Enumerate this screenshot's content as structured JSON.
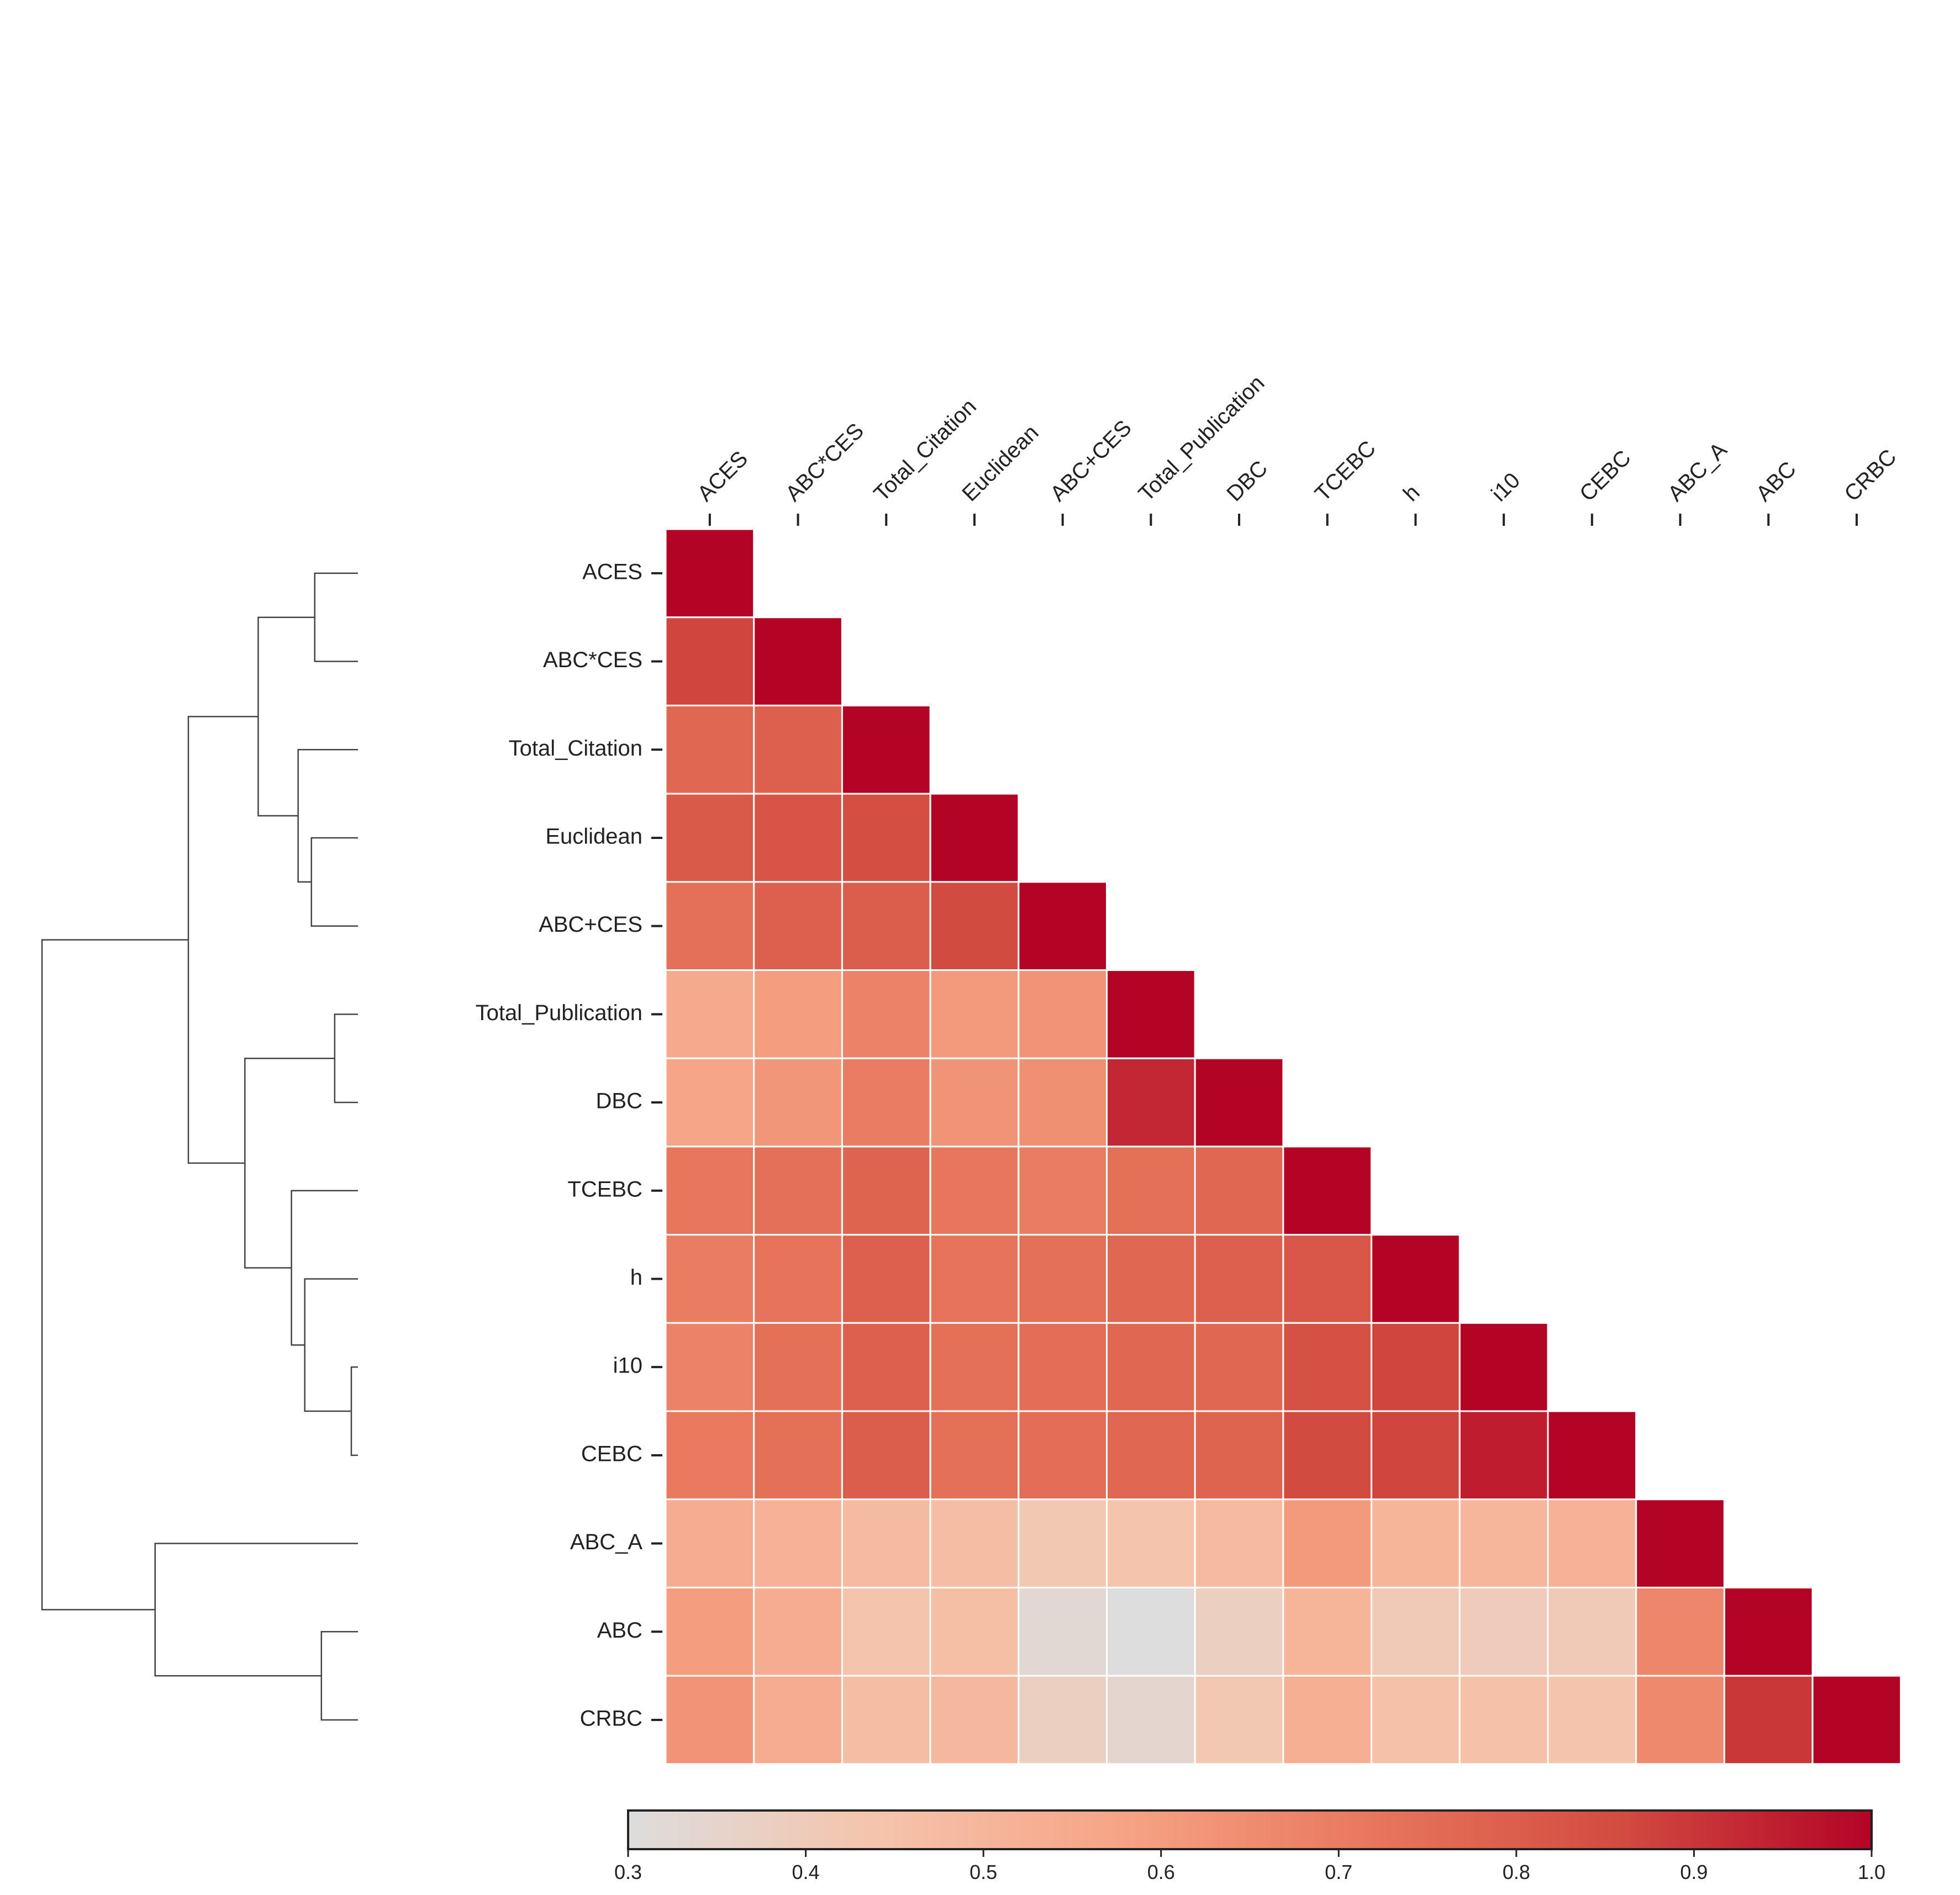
{
  "chart_data": {
    "type": "heatmap",
    "subtype": "lower-triangular correlation matrix with row dendrogram",
    "labels": [
      "ACES",
      "ABC*CES",
      "Total_Citation",
      "Euclidean",
      "ABC+CES",
      "Total_Publication",
      "DBC",
      "TCEBC",
      "h",
      "i10",
      "CEBC",
      "ABC_A",
      "ABC",
      "CRBC"
    ],
    "matrix": [
      [
        1.0
      ],
      [
        0.87,
        1.0
      ],
      [
        0.77,
        0.79,
        1.0
      ],
      [
        0.81,
        0.83,
        0.85,
        1.0
      ],
      [
        0.74,
        0.79,
        0.8,
        0.86,
        1.0
      ],
      [
        0.55,
        0.6,
        0.68,
        0.61,
        0.63,
        1.0
      ],
      [
        0.57,
        0.62,
        0.7,
        0.63,
        0.64,
        0.93,
        1.0
      ],
      [
        0.72,
        0.74,
        0.78,
        0.72,
        0.7,
        0.74,
        0.77,
        1.0
      ],
      [
        0.7,
        0.73,
        0.79,
        0.73,
        0.74,
        0.77,
        0.79,
        0.82,
        1.0
      ],
      [
        0.68,
        0.74,
        0.79,
        0.74,
        0.75,
        0.77,
        0.77,
        0.84,
        0.87,
        1.0
      ],
      [
        0.71,
        0.74,
        0.8,
        0.74,
        0.75,
        0.77,
        0.78,
        0.86,
        0.87,
        0.95,
        1.0
      ],
      [
        0.54,
        0.52,
        0.48,
        0.47,
        0.42,
        0.44,
        0.48,
        0.61,
        0.51,
        0.5,
        0.52,
        1.0
      ],
      [
        0.6,
        0.54,
        0.44,
        0.46,
        0.33,
        0.3,
        0.38,
        0.51,
        0.41,
        0.4,
        0.41,
        0.67,
        1.0
      ],
      [
        0.63,
        0.54,
        0.47,
        0.49,
        0.38,
        0.34,
        0.42,
        0.53,
        0.45,
        0.45,
        0.44,
        0.66,
        0.9,
        1.0
      ]
    ],
    "colorbar": {
      "min": 0.3,
      "max": 1.0,
      "ticks": [
        "0.3",
        "0.4",
        "0.5",
        "0.6",
        "0.7",
        "0.8",
        "0.9",
        "1.0"
      ],
      "colormap": "coolwarm-like, grey to red",
      "stops": [
        "#dddddd",
        "#f5c4ac",
        "#f6a385",
        "#e8765c",
        "#d24b40",
        "#b40426"
      ]
    },
    "dendrogram": {
      "side": "left",
      "leaf_order": [
        "ACES",
        "ABC*CES",
        "Total_Citation",
        "Euclidean",
        "ABC+CES",
        "Total_Publication",
        "DBC",
        "TCEBC",
        "h",
        "i10",
        "CEBC",
        "ABC_A",
        "ABC",
        "CRBC"
      ],
      "merges": [
        {
          "a": 9,
          "b": 10,
          "height": 0.02
        },
        {
          "a": 5,
          "b": 6,
          "height": 0.07
        },
        {
          "a": 0,
          "b": 1,
          "height": 0.13
        },
        {
          "a": 3,
          "b": 4,
          "height": 0.14
        },
        {
          "a": 8,
          "b": "m0",
          "height": 0.16
        },
        {
          "a": 2,
          "b": "m3",
          "height": 0.18
        },
        {
          "a": 7,
          "b": "m4",
          "height": 0.2
        },
        {
          "a": 12,
          "b": 13,
          "height": 0.11
        },
        {
          "a": "m2",
          "b": "m5",
          "height": 0.3
        },
        {
          "a": "m1",
          "b": "m6",
          "height": 0.34
        },
        {
          "a": "m8",
          "b": "m9",
          "height": 0.51
        },
        {
          "a": 11,
          "b": "m7",
          "height": 0.61
        },
        {
          "a": "m10",
          "b": "m11",
          "height": 0.95
        }
      ],
      "max_height": 0.98
    },
    "title": "",
    "xlabel": "",
    "ylabel": "",
    "grid": false
  }
}
